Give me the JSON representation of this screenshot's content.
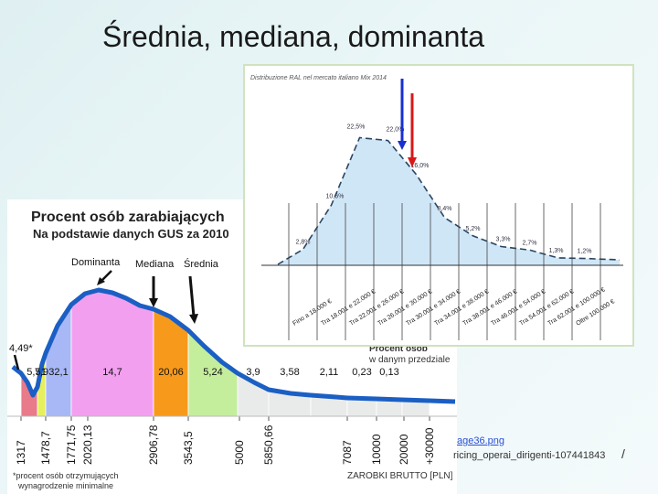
{
  "slide": {
    "title": "Średnia, mediana, dominanta",
    "url_fragment_1": "age36.png",
    "url_fragment_2": "ricing_operai_dirigenti-107441843",
    "url_slash": "/"
  },
  "chart_data": [
    {
      "type": "area",
      "title": "Procent osób zarabiających",
      "subtitle": "Na podstawie danych GUS za 2010",
      "xlabel": "ZAROBKI BRUTTO [PLN]",
      "ylabel": "",
      "legend_text_1": "Procent osób",
      "legend_text_2": "w danym przedziale",
      "footnote_1": "*procent osób otrzymujących",
      "footnote_2": "wynagrodzenie minimalne",
      "markers": {
        "mode": "Dominanta",
        "median": "Mediana",
        "mean": "Średnia"
      },
      "min_wage_label": "4,49*",
      "x_ticks": [
        "1317",
        "1478,7",
        "1771,75",
        "2020,13",
        "2906,78",
        "3543,5",
        "5000",
        "5850,66",
        "7087",
        "10000",
        "20000",
        "+30000"
      ],
      "values": [
        "5,51",
        "7,9",
        "32,1",
        "14,7",
        "20,06",
        "5,24",
        "3,9",
        "3,58",
        "2,11",
        "0,23",
        "0,13"
      ],
      "colors": [
        "#e87a8a",
        "#e6ef5c",
        "#a8b8f6",
        "#f39ff0",
        "#f79a1c",
        "#c4ee9c",
        "#e9ebea",
        "#e9ebea",
        "#e9ebea",
        "#e9ebea",
        "#e9ebea"
      ]
    },
    {
      "type": "area",
      "title": "Distribuzione RAL nel mercato italiano Mix 2014",
      "categories": [
        "Fino a 18.000 €",
        "Tra 18.001 e 22.000 €",
        "Tra 22.001 e 26.000 €",
        "Tra 26.001 e 30.000 €",
        "Tra 30.001 e 34.000 €",
        "Tra 34.001 e 38.000 €",
        "Tra 38.001 e 46.000 €",
        "Tra 46.001 e 54.000 €",
        "Tra 54.001 e 62.000 €",
        "Tra 62.001 e 100.000 €",
        "Oltre 100.000 €"
      ],
      "labels": [
        "2,8%",
        "10,6%",
        "22,5%",
        "22,0%",
        "16,0%",
        "8,4%",
        "5,2%",
        "3,3%",
        "2,7%",
        "1,3%",
        "1,2%"
      ],
      "values": [
        2.8,
        10.6,
        22.5,
        22.0,
        16.0,
        8.4,
        5.2,
        3.3,
        2.7,
        1.3,
        1.2
      ],
      "arrow_colors": [
        "#1a2fd0",
        "#d81818"
      ]
    }
  ]
}
